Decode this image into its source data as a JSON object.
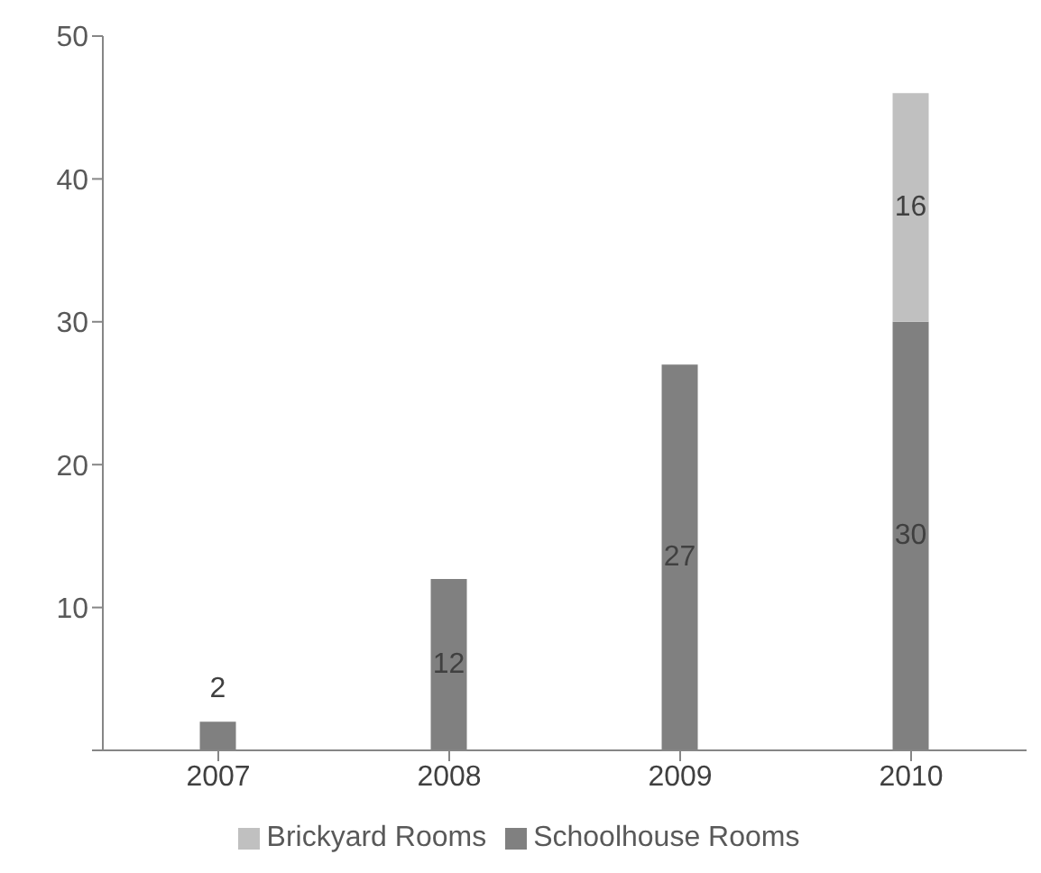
{
  "chart_data": {
    "type": "bar",
    "stacked": true,
    "categories": [
      "2007",
      "2008",
      "2009",
      "2010"
    ],
    "series": [
      {
        "name": "Schoolhouse Rooms",
        "color": "#808080",
        "values": [
          2,
          12,
          27,
          30
        ]
      },
      {
        "name": "Brickyard Rooms",
        "color": "#c0c0c0",
        "values": [
          null,
          null,
          null,
          16
        ]
      }
    ],
    "ylim": [
      0,
      50
    ],
    "yticks": [
      {
        "value": 0,
        "label": null
      },
      10,
      20,
      30,
      40,
      50
    ],
    "grid": false,
    "legend": "bottom",
    "data_labels": true
  }
}
